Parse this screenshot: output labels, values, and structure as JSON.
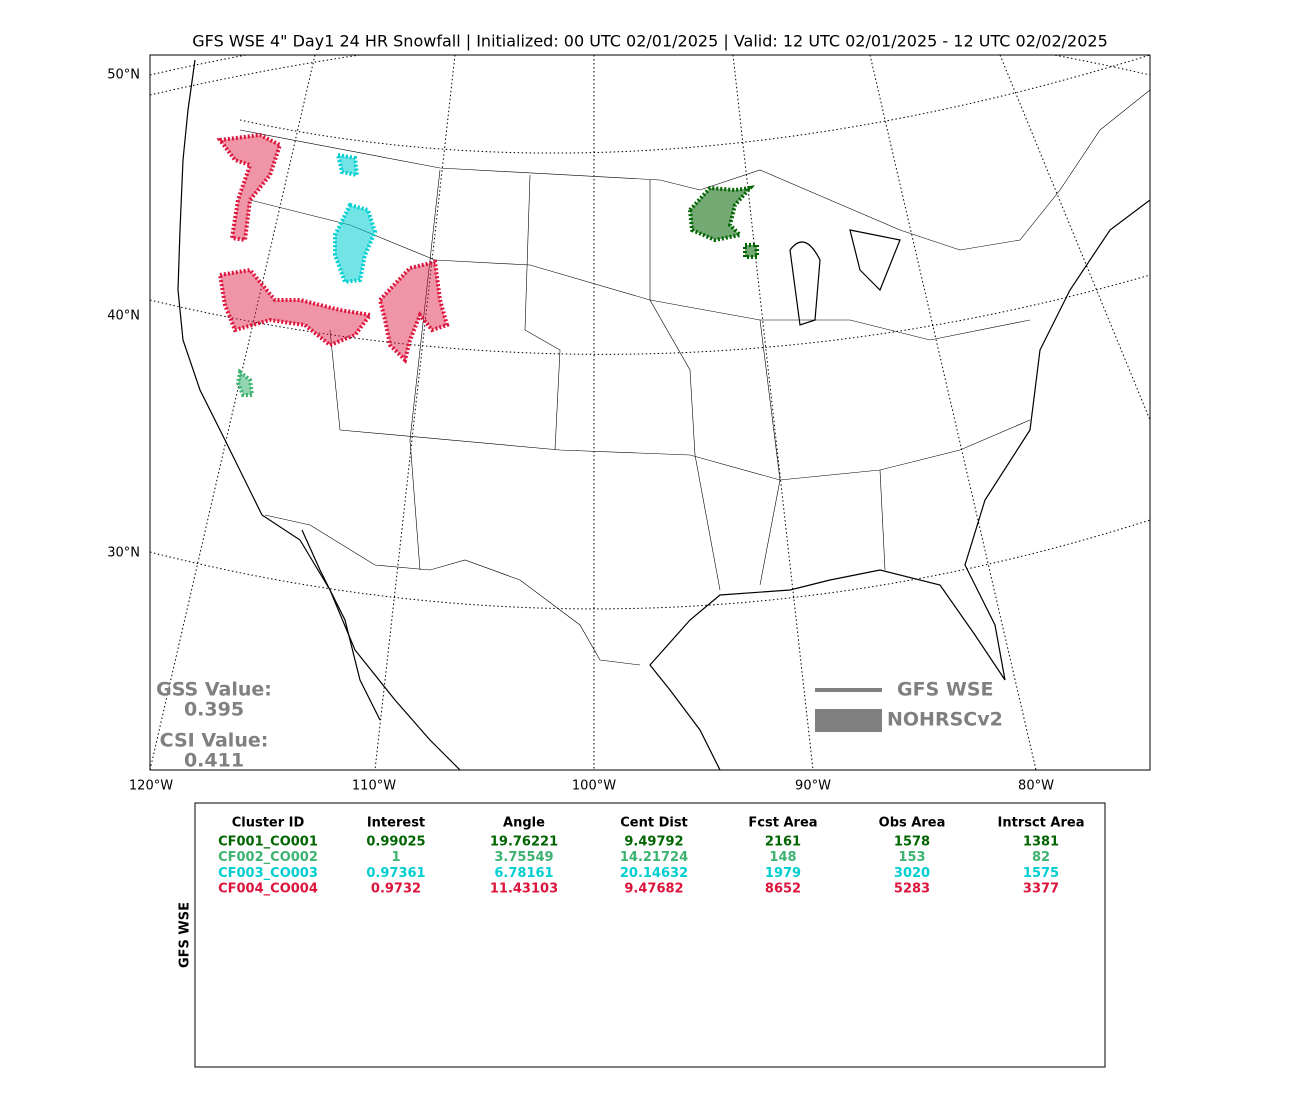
{
  "title": "GFS WSE 4\" Day1 24 HR Snowfall | Initialized: 00 UTC 02/01/2025 | Valid: 12 UTC 02/01/2025 - 12 UTC 02/02/2025",
  "map": {
    "lat_labels": [
      "50°N",
      "40°N",
      "30°N"
    ],
    "lon_labels": [
      "120°W",
      "110°W",
      "100°W",
      "90°W",
      "80°W"
    ]
  },
  "stats": {
    "gss_label": "GSS Value:",
    "gss_value": 0.395,
    "csi_label": "CSI Value:",
    "csi_value": 0.411
  },
  "legend": {
    "forecast": "GFS WSE",
    "observed": "NOHRSCv2"
  },
  "table": {
    "side_label": "GFS WSE",
    "columns": [
      "Cluster ID",
      "Interest",
      "Angle",
      "Cent Dist",
      "Fcst Area",
      "Obs Area",
      "Intrsct Area"
    ],
    "rows": [
      {
        "color": "#006400",
        "cells": [
          "CF001_CO001",
          0.99025,
          19.76221,
          9.49792,
          2161,
          1578,
          1381
        ]
      },
      {
        "color": "#3cb371",
        "cells": [
          "CF002_CO002",
          1,
          3.75549,
          14.21724,
          148,
          153,
          82
        ]
      },
      {
        "color": "#00ced1",
        "cells": [
          "CF003_CO003",
          0.97361,
          6.78161,
          20.14632,
          1979,
          3020,
          1575
        ]
      },
      {
        "color": "#dc143c",
        "cells": [
          "CF004_CO004",
          0.9732,
          11.43103,
          9.47682,
          8652,
          5283,
          3377
        ]
      }
    ]
  }
}
